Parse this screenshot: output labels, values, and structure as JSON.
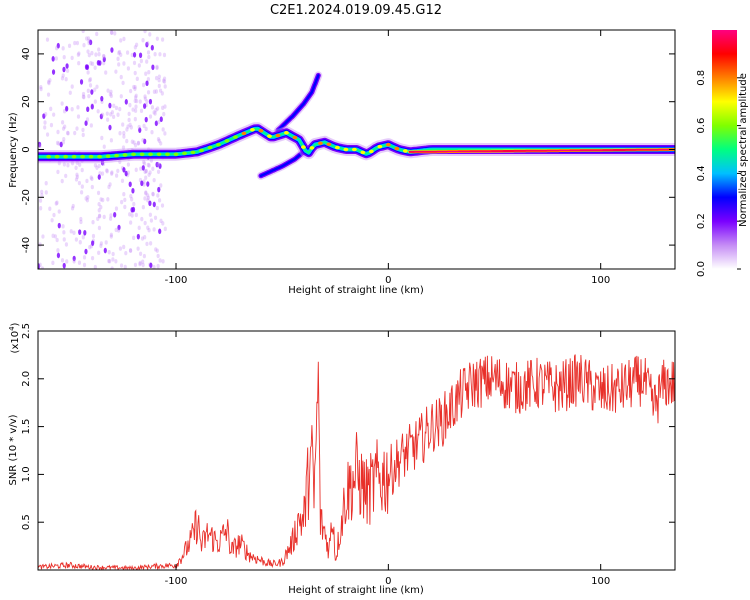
{
  "title": "C2E1.2024.019.09.45.G12",
  "chart_data": [
    {
      "type": "heatmap",
      "name": "spectrogram",
      "xlabel": "Height of straight line (km)",
      "ylabel": "Frequency (Hz)",
      "xlim": [
        -165,
        135
      ],
      "ylim": [
        -50,
        50
      ],
      "xticks": [
        -100,
        0,
        100
      ],
      "yticks": [
        -40,
        -20,
        0,
        20,
        40
      ],
      "colorbar": {
        "label": "Normalized spectral amplitude",
        "range": [
          0,
          1
        ],
        "ticks": [
          "0.0",
          "0.2",
          "0.4",
          "0.6",
          "0.8"
        ],
        "colors": [
          "#ffffff",
          "#c58cf5",
          "#7a00ff",
          "#0000ff",
          "#00c0ff",
          "#00ff80",
          "#80ff00",
          "#ffff00",
          "#ff8000",
          "#ff0000",
          "#ff0080"
        ]
      },
      "ridge": {
        "x": [
          -165,
          -150,
          -135,
          -120,
          -110,
          -100,
          -90,
          -80,
          -70,
          -62,
          -55,
          -48,
          -42,
          -38,
          -35,
          -30,
          -25,
          -20,
          -15,
          -10,
          -5,
          0,
          5,
          10,
          20,
          135
        ],
        "y": [
          -3,
          -3,
          -3,
          -2,
          -2,
          -2,
          -1,
          2,
          6,
          9,
          5,
          7,
          4,
          -2,
          2,
          3,
          1,
          0,
          0,
          -2,
          1,
          2,
          0,
          -1,
          0,
          0
        ]
      },
      "branch_upper": {
        "x": [
          -52,
          -45,
          -40,
          -36,
          -33
        ],
        "y": [
          8,
          14,
          19,
          24,
          31
        ]
      },
      "branch_lower": {
        "x": [
          -60,
          -55,
          -50,
          -44,
          -40
        ],
        "y": [
          -11,
          -9,
          -7,
          -4,
          -1
        ]
      },
      "noise_region_x": [
        -165,
        -105
      ]
    },
    {
      "type": "line",
      "name": "snr",
      "xlabel": "Height of straight line (km)",
      "ylabel": "SNR (10 * v/v)",
      "yscale_label": "(x10",
      "yscale_exp": "4",
      "xlim": [
        -165,
        135
      ],
      "ylim": [
        0,
        2.5
      ],
      "xticks": [
        -100,
        0,
        100
      ],
      "yticks": [
        0.5,
        1.0,
        1.5,
        2.0,
        2.5
      ],
      "yticklabels": [
        "0.5",
        "1.0",
        "1.5",
        "2.0",
        "2.5"
      ],
      "color": "#e8302a",
      "series": [
        {
          "x": [
            -165,
            -150,
            -140,
            -120,
            -110,
            -100,
            -95,
            -92,
            -90,
            -88,
            -85,
            -80,
            -76,
            -74,
            -70,
            -65,
            -60,
            -55,
            -50,
            -45,
            -42,
            -40,
            -38,
            -36,
            -35,
            -33,
            -32,
            -30,
            -28,
            -26,
            -25,
            -20,
            -15,
            -10,
            -5,
            0,
            5,
            10,
            15,
            20,
            25,
            30,
            35,
            40,
            50,
            60,
            70,
            80,
            90,
            100,
            110,
            120,
            125,
            130,
            135
          ],
          "y": [
            0.03,
            0.05,
            0.03,
            0.02,
            0.04,
            0.05,
            0.22,
            0.35,
            0.52,
            0.25,
            0.38,
            0.28,
            0.42,
            0.2,
            0.28,
            0.15,
            0.1,
            0.06,
            0.08,
            0.3,
            0.55,
            0.5,
            0.9,
            1.3,
            0.7,
            2.05,
            0.5,
            0.4,
            0.2,
            0.6,
            0.1,
            0.8,
            1.0,
            0.8,
            0.95,
            1.0,
            1.15,
            1.25,
            1.35,
            1.5,
            1.55,
            1.7,
            1.85,
            1.95,
            2.0,
            1.9,
            1.95,
            1.9,
            2.0,
            1.85,
            1.9,
            2.0,
            1.7,
            1.95,
            1.95
          ]
        }
      ]
    }
  ]
}
